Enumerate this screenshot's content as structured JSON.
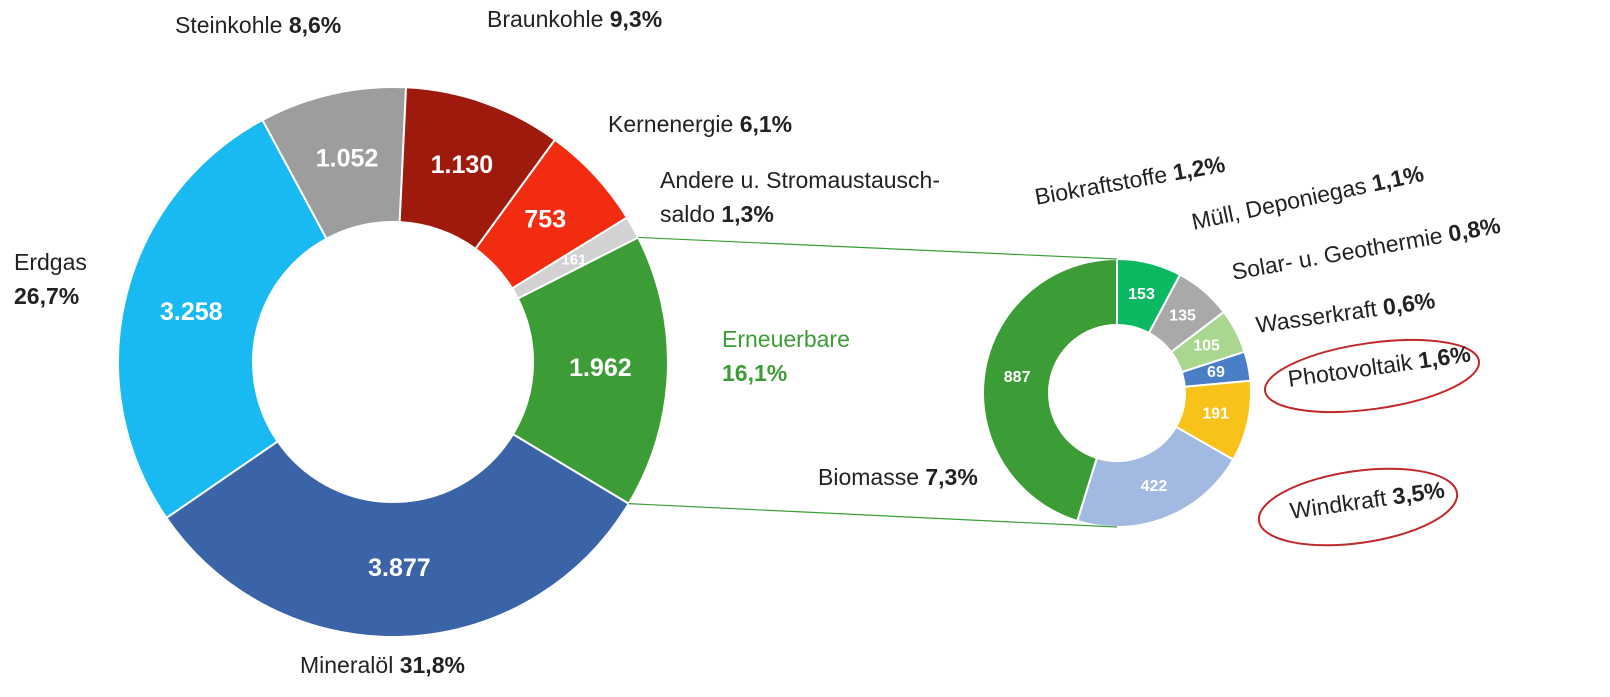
{
  "chart_data": [
    {
      "type": "donut",
      "categories": [
        "Mineralöl",
        "Erdgas",
        "Steinkohle",
        "Braunkohle",
        "Kernenergie",
        "Andere u. Stromaustausch-saldo",
        "Erneuerbare"
      ],
      "values": [
        3877,
        3258,
        1052,
        1130,
        753,
        161,
        1962
      ],
      "value_labels": [
        "3.877",
        "3.258",
        "1.052",
        "1.130",
        "753",
        "161",
        "1.962"
      ],
      "percentages": [
        31.8,
        26.7,
        8.6,
        9.3,
        6.1,
        1.3,
        16.1
      ],
      "percentage_labels": [
        "31,8%",
        "26,7%",
        "8,6%",
        "9,3%",
        "6,1%",
        "1,3%",
        "16,1%"
      ],
      "colors": [
        "#3b64a8",
        "#19b9f1",
        "#9d9d9d",
        "#9e1a0d",
        "#f22c10",
        "#d2d2d2",
        "#3c9d36"
      ]
    },
    {
      "type": "donut",
      "categories": [
        "Biokraftstoffe",
        "Müll, Deponiegas",
        "Solar- u. Geothermie",
        "Wasserkraft",
        "Photovoltaik",
        "Windkraft",
        "Biomasse"
      ],
      "values": [
        153,
        135,
        105,
        69,
        191,
        422,
        887
      ],
      "percentages": [
        1.2,
        1.1,
        0.8,
        0.6,
        1.6,
        3.5,
        7.3
      ],
      "percentage_labels": [
        "1,2%",
        "1,1%",
        "0,8%",
        "0,6%",
        "1,6%",
        "3,5%",
        "7,3%"
      ],
      "colors": [
        "#0db863",
        "#a9a9a9",
        "#a9d78f",
        "#4a7ec6",
        "#f8c21b",
        "#a2b9e1",
        "#3c9d36"
      ]
    }
  ]
}
